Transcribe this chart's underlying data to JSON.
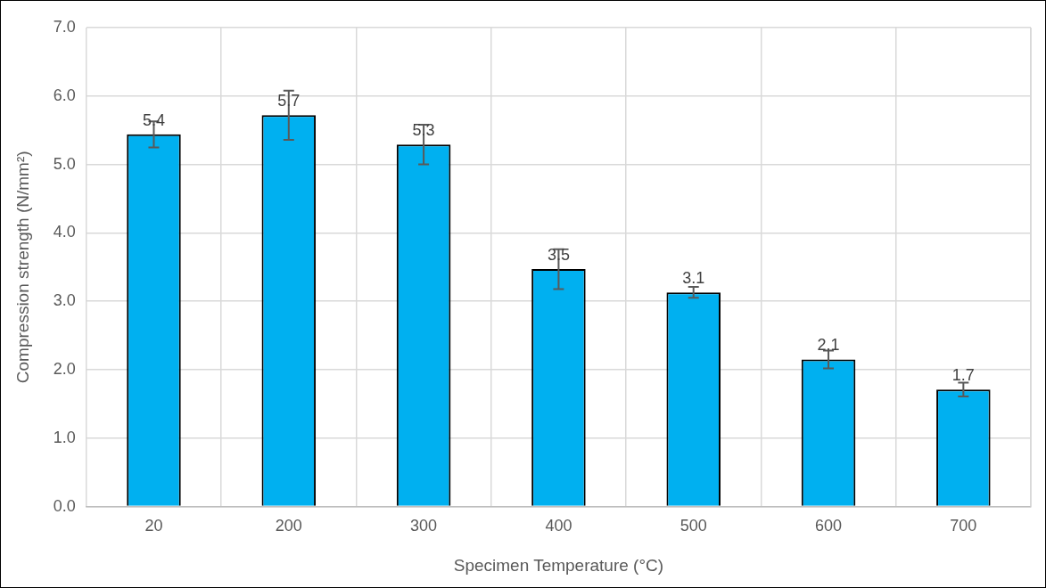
{
  "chart_data": {
    "type": "bar",
    "xlabel": "Specimen Temperature (°C)",
    "ylabel": "Compression strength (N/mm²)",
    "categories": [
      "20",
      "200",
      "300",
      "400",
      "500",
      "600",
      "700"
    ],
    "values": [
      5.44,
      5.72,
      5.29,
      3.47,
      3.13,
      2.15,
      1.71
    ],
    "errors": [
      0.19,
      0.36,
      0.29,
      0.29,
      0.08,
      0.13,
      0.1
    ],
    "value_labels": [
      "5.4",
      "5.7",
      "5.3",
      "3.5",
      "3.1",
      "2.1",
      "1.7"
    ],
    "color": "#00b0f0",
    "ylim": [
      0,
      7
    ],
    "yticks": [
      {
        "value": 0,
        "label": "0.0"
      },
      {
        "value": 1,
        "label": "1.0"
      },
      {
        "value": 2,
        "label": "2.0"
      },
      {
        "value": 3,
        "label": "3.0"
      },
      {
        "value": 4,
        "label": "4.0"
      },
      {
        "value": 5,
        "label": "5.0"
      },
      {
        "value": 6,
        "label": "6.0"
      },
      {
        "value": 7,
        "label": "7.0"
      }
    ],
    "grid": true,
    "legend": false
  }
}
